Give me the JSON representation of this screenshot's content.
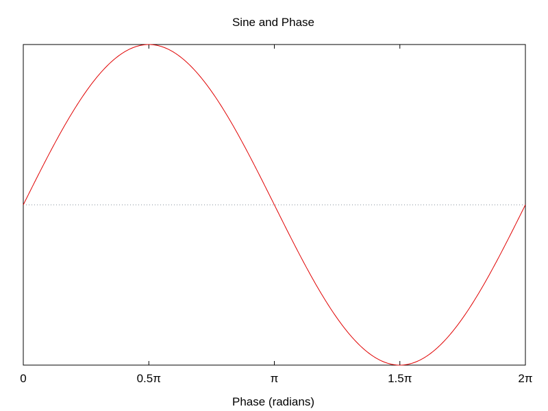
{
  "chart_data": {
    "type": "line",
    "title": "Sine and Phase",
    "xlabel": "Phase (radians)",
    "ylabel": "",
    "xlim": [
      0,
      6.283185307179586
    ],
    "ylim": [
      -1,
      1
    ],
    "x_ticks": [
      {
        "value": 0,
        "label": "0"
      },
      {
        "value": 1.5707963267948966,
        "label": "0.5π"
      },
      {
        "value": 3.141592653589793,
        "label": "π"
      },
      {
        "value": 4.71238898038469,
        "label": "1.5π"
      },
      {
        "value": 6.283185307179586,
        "label": "2π"
      }
    ],
    "y_ticks": [],
    "grid": false,
    "reference_line": {
      "y": 0,
      "style": "dotted",
      "color": "#7f8c99"
    },
    "series": [
      {
        "color": "#e00000",
        "function": "sin(x)",
        "x": [
          0,
          0.3927,
          0.7854,
          1.1781,
          1.5708,
          1.9635,
          2.3562,
          2.7489,
          3.1416,
          3.5343,
          3.927,
          4.3197,
          4.7124,
          5.1051,
          5.4978,
          5.8905,
          6.2832
        ],
        "y": [
          0,
          0.3827,
          0.7071,
          0.9239,
          1,
          0.9239,
          0.7071,
          0.3827,
          0,
          -0.3827,
          -0.7071,
          -0.9239,
          -1,
          -0.9239,
          -0.7071,
          -0.3827,
          0
        ]
      }
    ],
    "colors": {
      "line": "#e00000",
      "zero_line": "#7f8c99",
      "axes": "#000000",
      "background": "#ffffff"
    }
  }
}
